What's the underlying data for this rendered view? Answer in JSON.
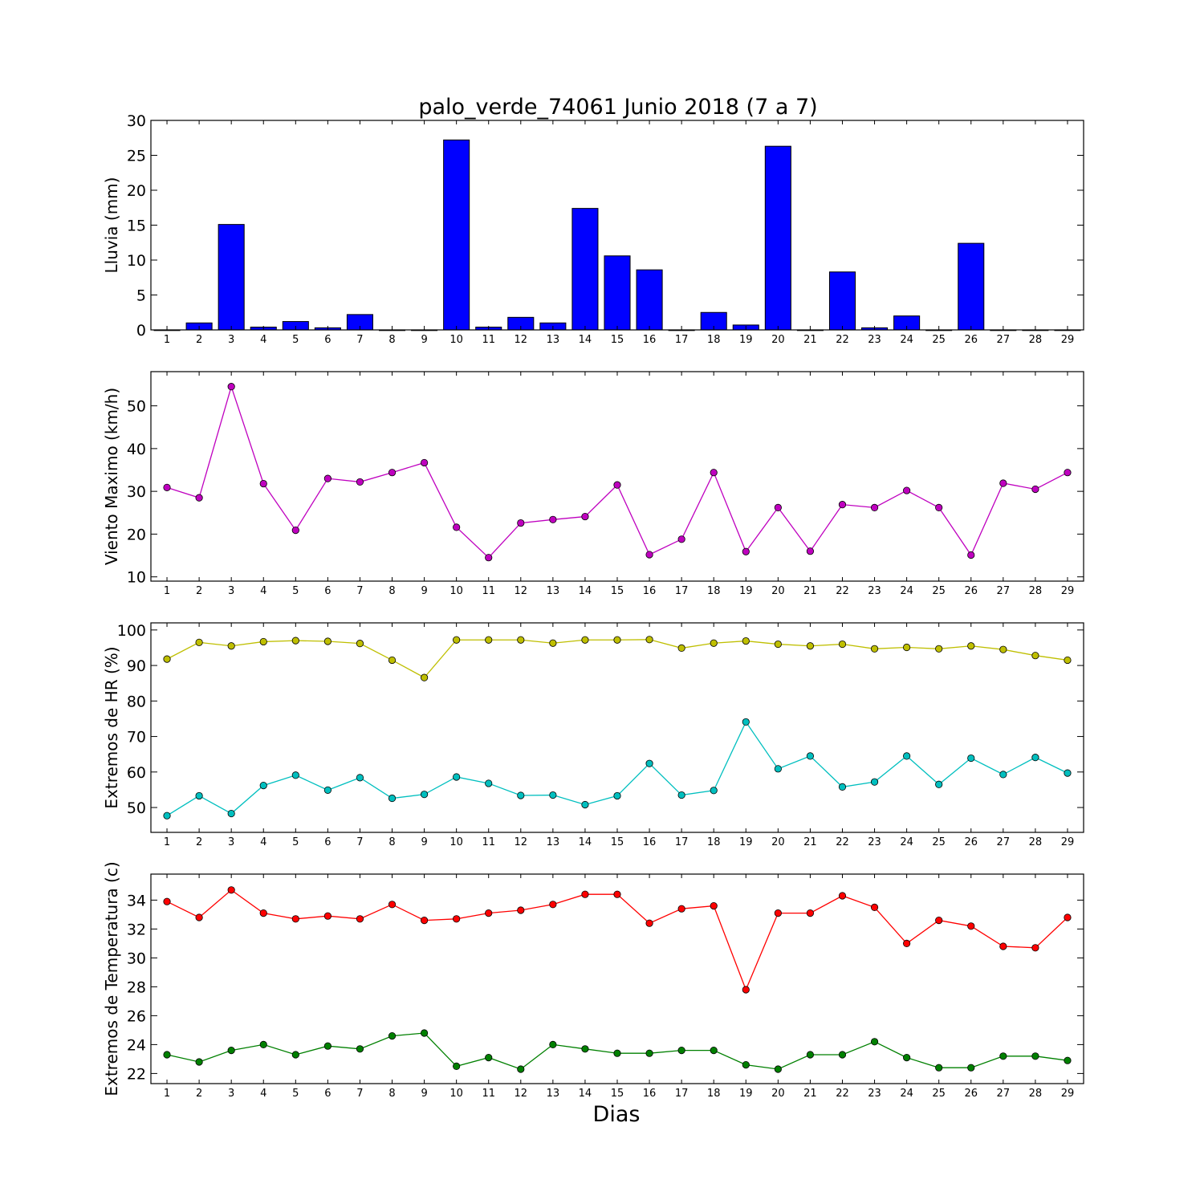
{
  "chart_data": [
    {
      "type": "bar",
      "title": "palo_verde_74061 Junio 2018  (7 a 7)",
      "ylabel": "Lluvia (mm)",
      "xlabel": "",
      "categories": [
        1,
        2,
        3,
        4,
        5,
        6,
        7,
        8,
        9,
        10,
        11,
        12,
        13,
        14,
        15,
        16,
        17,
        18,
        19,
        20,
        21,
        22,
        23,
        24,
        25,
        26,
        27,
        28,
        29
      ],
      "values": [
        0,
        1.0,
        15.1,
        0.4,
        1.2,
        0.3,
        2.2,
        0,
        0,
        27.2,
        0.4,
        1.8,
        1.0,
        17.4,
        10.6,
        8.6,
        0,
        2.5,
        0.7,
        26.3,
        0,
        8.3,
        0.3,
        2.0,
        0,
        12.4,
        0,
        0,
        0
      ],
      "ylim": [
        0,
        30
      ],
      "yticks": [
        0,
        5,
        10,
        15,
        20,
        25,
        30
      ],
      "color": "#0000ff"
    },
    {
      "type": "line",
      "ylabel": "Viento Maximo (km/h)",
      "xlabel": "",
      "x": [
        1,
        2,
        3,
        4,
        5,
        6,
        7,
        8,
        9,
        10,
        11,
        12,
        13,
        14,
        15,
        16,
        17,
        18,
        19,
        20,
        21,
        22,
        23,
        24,
        25,
        26,
        27,
        28,
        29
      ],
      "series": [
        {
          "color": "#bf00bf",
          "values": [
            30.9,
            28.5,
            54.5,
            31.8,
            20.9,
            33.0,
            32.2,
            34.4,
            36.7,
            21.6,
            14.5,
            22.6,
            23.4,
            24.1,
            31.5,
            15.2,
            18.8,
            34.4,
            15.9,
            26.2,
            16.0,
            26.9,
            26.2,
            30.2,
            26.2,
            15.1,
            31.9,
            30.5,
            34.4
          ]
        }
      ],
      "ylim": [
        9,
        58
      ],
      "yticks": [
        10,
        20,
        30,
        40,
        50
      ]
    },
    {
      "type": "line",
      "ylabel": "Extremos de HR (%)",
      "xlabel": "",
      "x": [
        1,
        2,
        3,
        4,
        5,
        6,
        7,
        8,
        9,
        10,
        11,
        12,
        13,
        14,
        15,
        16,
        17,
        18,
        19,
        20,
        21,
        22,
        23,
        24,
        25,
        26,
        27,
        28,
        29
      ],
      "series": [
        {
          "color": "#bfbf00",
          "values": [
            91.8,
            96.5,
            95.5,
            96.7,
            97.0,
            96.8,
            96.2,
            91.5,
            86.6,
            97.2,
            97.2,
            97.2,
            96.3,
            97.2,
            97.2,
            97.3,
            94.9,
            96.3,
            96.9,
            96.0,
            95.5,
            96.0,
            94.7,
            95.1,
            94.7,
            95.5,
            94.5,
            92.8,
            91.5
          ]
        },
        {
          "color": "#00bfbf",
          "values": [
            47.7,
            53.3,
            48.3,
            56.2,
            59.1,
            54.9,
            58.4,
            52.6,
            53.7,
            58.6,
            56.8,
            53.4,
            53.5,
            50.8,
            53.3,
            62.4,
            53.5,
            54.8,
            74.1,
            60.9,
            64.5,
            55.8,
            57.2,
            64.5,
            56.5,
            63.9,
            59.3,
            64.1,
            59.7
          ]
        }
      ],
      "ylim": [
        43,
        102
      ],
      "yticks": [
        50,
        60,
        70,
        80,
        90,
        100
      ]
    },
    {
      "type": "line",
      "ylabel": "Extremos de Temperatura (c)",
      "xlabel": "Dias",
      "x": [
        1,
        2,
        3,
        4,
        5,
        6,
        7,
        8,
        9,
        10,
        11,
        12,
        13,
        14,
        15,
        16,
        17,
        18,
        19,
        20,
        21,
        22,
        23,
        24,
        25,
        26,
        27,
        28,
        29
      ],
      "series": [
        {
          "color": "#ff0000",
          "values": [
            33.9,
            32.8,
            34.7,
            33.1,
            32.7,
            32.9,
            32.7,
            33.7,
            32.6,
            32.7,
            33.1,
            33.3,
            33.7,
            34.4,
            34.4,
            32.4,
            33.4,
            33.6,
            27.8,
            33.1,
            33.1,
            34.3,
            33.5,
            31.0,
            32.6,
            32.2,
            30.8,
            30.7,
            32.8
          ]
        },
        {
          "color": "#008000",
          "values": [
            23.3,
            22.8,
            23.6,
            24.0,
            23.3,
            23.9,
            23.7,
            24.6,
            24.8,
            22.5,
            23.1,
            22.3,
            24.0,
            23.7,
            23.4,
            23.4,
            23.6,
            23.6,
            22.6,
            22.3,
            23.3,
            23.3,
            24.2,
            23.1,
            22.4,
            22.4,
            23.2,
            23.2,
            22.9
          ]
        }
      ],
      "ylim": [
        21.3,
        35.8
      ],
      "yticks": [
        22,
        24,
        26,
        28,
        30,
        32,
        34
      ]
    }
  ]
}
